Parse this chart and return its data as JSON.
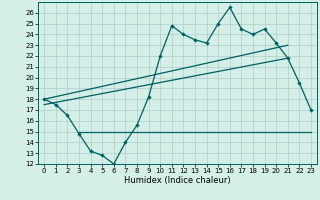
{
  "title": "",
  "xlabel": "Humidex (Indice chaleur)",
  "x_values": [
    0,
    1,
    2,
    3,
    4,
    5,
    6,
    7,
    8,
    9,
    10,
    11,
    12,
    13,
    14,
    15,
    16,
    17,
    18,
    19,
    20,
    21,
    22,
    23
  ],
  "main_line": [
    18,
    17.5,
    16.5,
    14.8,
    13.2,
    12.8,
    12,
    14,
    15.6,
    18.2,
    22,
    24.8,
    24,
    23.5,
    23.2,
    25,
    26.5,
    24.5,
    24,
    24.5,
    23.2,
    21.8,
    19.5,
    17
  ],
  "upper_trend_x": [
    0,
    21
  ],
  "upper_trend_y": [
    18.0,
    23.0
  ],
  "lower_trend_x": [
    0,
    21
  ],
  "lower_trend_y": [
    17.5,
    21.8
  ],
  "flat_line_x": [
    3,
    23
  ],
  "flat_line_y": [
    15.0,
    15.0
  ],
  "ylim": [
    12,
    27
  ],
  "xlim": [
    -0.5,
    23.5
  ],
  "yticks": [
    12,
    13,
    14,
    15,
    16,
    17,
    18,
    19,
    20,
    21,
    22,
    23,
    24,
    25,
    26
  ],
  "xticks": [
    0,
    1,
    2,
    3,
    4,
    5,
    6,
    7,
    8,
    9,
    10,
    11,
    12,
    13,
    14,
    15,
    16,
    17,
    18,
    19,
    20,
    21,
    22,
    23
  ],
  "line_color": "#006060",
  "bg_color": "#d4eee8",
  "grid_color": "#b0ccc8",
  "tick_fontsize": 5,
  "xlabel_fontsize": 6,
  "marker": "D",
  "markersize": 2.2,
  "linewidth": 0.9
}
